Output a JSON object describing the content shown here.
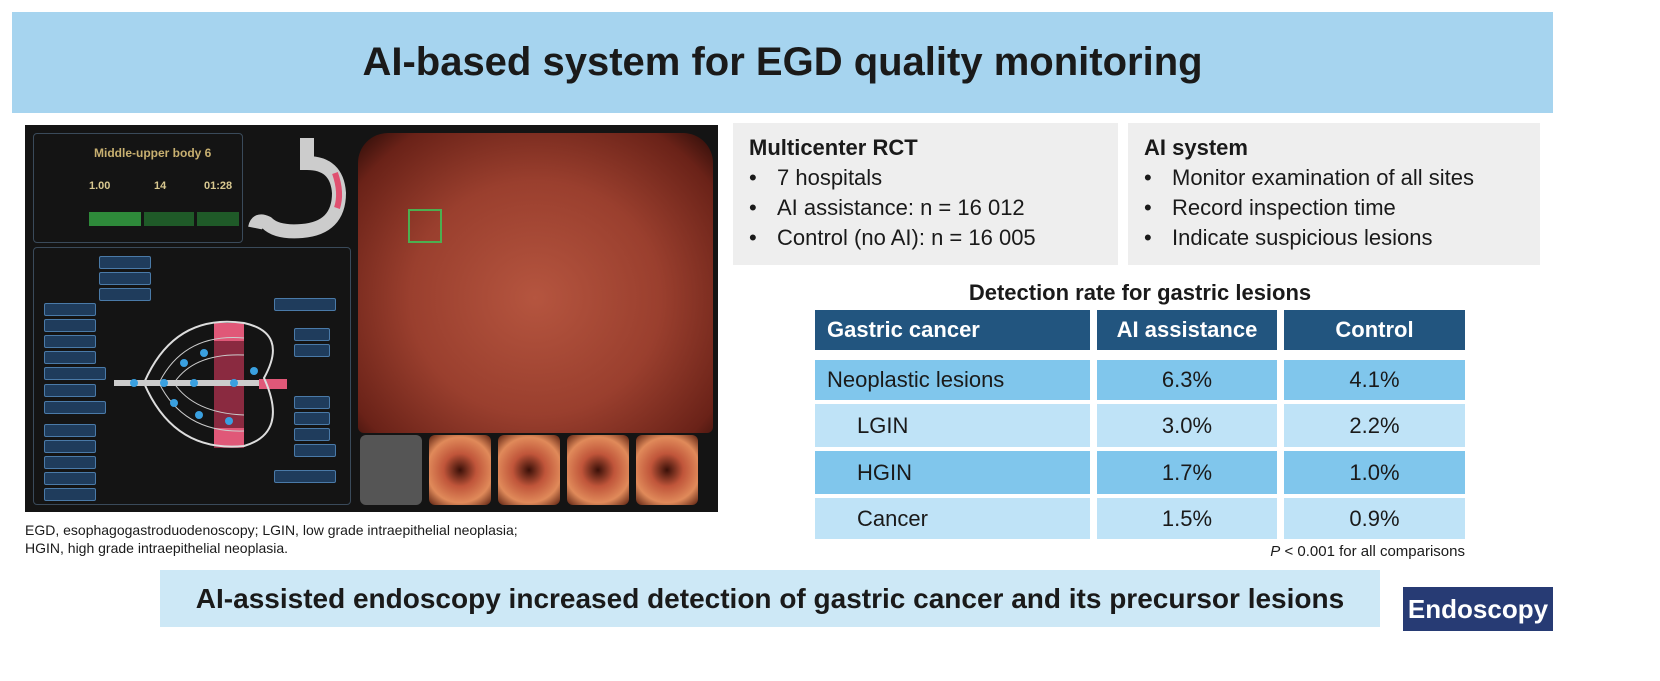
{
  "header": {
    "title": "AI-based system for EGD quality monitoring"
  },
  "figure": {
    "panel_title": "Middle-upper body 6",
    "stats": {
      "val1": "1.00",
      "val2": "14",
      "time": "01:28"
    }
  },
  "footnote": [
    "EGD, esophagogastroduodenoscopy; LGIN, low grade intraepithelial neoplasia;",
    "HGIN, high grade intraepithelial neoplasia."
  ],
  "rct_box": {
    "title": "Multicenter RCT",
    "items": [
      "7 hospitals",
      "AI assistance: n = 16 012",
      "Control (no AI): n = 16 005"
    ]
  },
  "ai_box": {
    "title": "AI system",
    "items": [
      "Monitor examination of all sites",
      "Record inspection time",
      "Indicate suspicious lesions"
    ]
  },
  "table": {
    "title": "Detection rate for gastric lesions",
    "headers": [
      "Gastric cancer",
      "AI assistance",
      "Control"
    ],
    "rows": [
      {
        "label": "Neoplastic lesions",
        "ai": "6.3%",
        "control": "4.1%"
      },
      {
        "label": "LGIN",
        "ai": "3.0%",
        "control": "2.2%"
      },
      {
        "label": "HGIN",
        "ai": "1.7%",
        "control": "1.0%"
      },
      {
        "label": "Cancer",
        "ai": "1.5%",
        "control": "0.9%"
      }
    ],
    "p_letter": "P",
    "p_note": " < 0.001 for all comparisons"
  },
  "conclusion": "AI-assisted endoscopy increased detection of gastric cancer and its precursor lesions",
  "logo": "Endoscopy",
  "colors": {
    "header_bg": "#a6d4ef",
    "table_header": "#22557f",
    "row_dark": "#80c6ec",
    "row_light": "#bfe3f7",
    "logo_bg": "#273b74"
  }
}
